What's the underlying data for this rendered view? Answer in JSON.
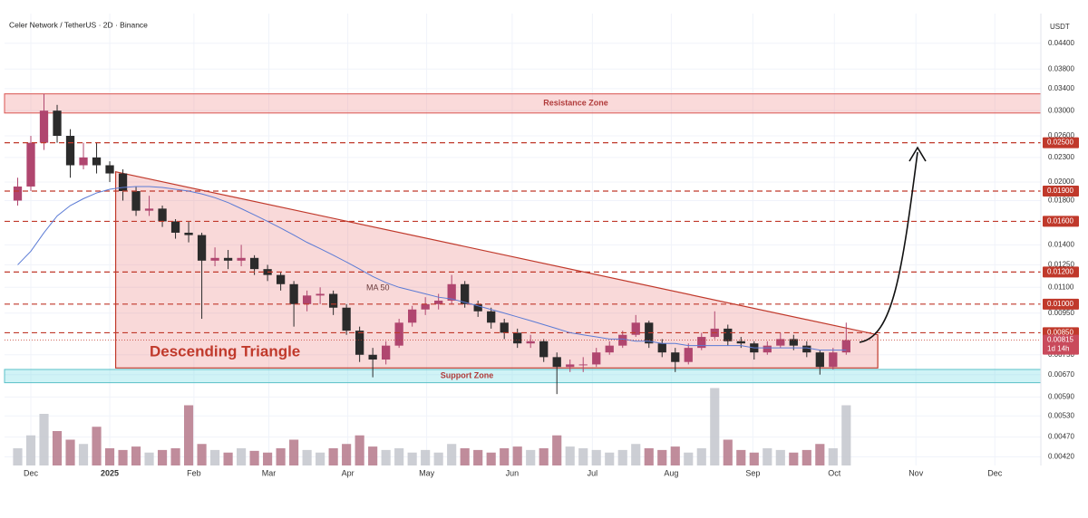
{
  "chart_data": {
    "type": "candlestick",
    "title": "Celer Network / TetherUS · 2D · Binance",
    "axis_unit": "USDT",
    "log_scale": true,
    "grid": true,
    "ylim": [
      0.004,
      0.051
    ],
    "yticks": [
      {
        "value": 0.044,
        "label": "0.04400"
      },
      {
        "value": 0.038,
        "label": "0.03800"
      },
      {
        "value": 0.034,
        "label": "0.03400"
      },
      {
        "value": 0.03,
        "label": "0.03000"
      },
      {
        "value": 0.026,
        "label": "0.02600"
      },
      {
        "value": 0.023,
        "label": "0.02300"
      },
      {
        "value": 0.02,
        "label": "0.02000"
      },
      {
        "value": 0.018,
        "label": "0.01800"
      },
      {
        "value": 0.014,
        "label": "0.01400"
      },
      {
        "value": 0.0125,
        "label": "0.01250"
      },
      {
        "value": 0.011,
        "label": "0.01100"
      },
      {
        "value": 0.0095,
        "label": "0.00950"
      },
      {
        "value": 0.0075,
        "label": "0.00750"
      },
      {
        "value": 0.0067,
        "label": "0.00670"
      },
      {
        "value": 0.0059,
        "label": "0.00590"
      },
      {
        "value": 0.0053,
        "label": "0.00530"
      },
      {
        "value": 0.0047,
        "label": "0.00470"
      },
      {
        "value": 0.0042,
        "label": "0.00420"
      }
    ],
    "xlim": [
      -1,
      77.8
    ],
    "xticks": [
      {
        "value": 1,
        "label": "Dec"
      },
      {
        "value": 7,
        "label": "2025"
      },
      {
        "value": 13.4,
        "label": "Feb"
      },
      {
        "value": 19.1,
        "label": "Mar"
      },
      {
        "value": 25.1,
        "label": "Apr"
      },
      {
        "value": 31.1,
        "label": "May"
      },
      {
        "value": 37.6,
        "label": "Jun"
      },
      {
        "value": 43.7,
        "label": "Jul"
      },
      {
        "value": 49.7,
        "label": "Aug"
      },
      {
        "value": 55.9,
        "label": "Sep"
      },
      {
        "value": 62.1,
        "label": "Oct"
      },
      {
        "value": 68.3,
        "label": "Nov"
      },
      {
        "value": 74.3,
        "label": "Dec"
      }
    ],
    "up_color": "#b0466f",
    "down_color": "#2b2b2b",
    "ohlc": [
      [
        0.018,
        0.0205,
        0.0175,
        0.0195
      ],
      [
        0.0195,
        0.026,
        0.019,
        0.025
      ],
      [
        0.025,
        0.033,
        0.024,
        0.03
      ],
      [
        0.03,
        0.031,
        0.025,
        0.026
      ],
      [
        0.026,
        0.027,
        0.0205,
        0.022
      ],
      [
        0.022,
        0.025,
        0.0215,
        0.023
      ],
      [
        0.023,
        0.025,
        0.021,
        0.022
      ],
      [
        0.022,
        0.0225,
        0.02,
        0.021
      ],
      [
        0.021,
        0.0215,
        0.018,
        0.019
      ],
      [
        0.019,
        0.0195,
        0.0165,
        0.017
      ],
      [
        0.017,
        0.0185,
        0.0165,
        0.0172
      ],
      [
        0.0172,
        0.0175,
        0.0155,
        0.016
      ],
      [
        0.016,
        0.0162,
        0.0145,
        0.015
      ],
      [
        0.015,
        0.016,
        0.0142,
        0.0148
      ],
      [
        0.0148,
        0.015,
        0.0092,
        0.0128
      ],
      [
        0.0128,
        0.0138,
        0.0124,
        0.013
      ],
      [
        0.013,
        0.0136,
        0.0122,
        0.0128
      ],
      [
        0.0128,
        0.014,
        0.0124,
        0.013
      ],
      [
        0.013,
        0.0132,
        0.0118,
        0.0122
      ],
      [
        0.0122,
        0.0125,
        0.0114,
        0.0118
      ],
      [
        0.0118,
        0.012,
        0.0108,
        0.0112
      ],
      [
        0.0112,
        0.0114,
        0.0088,
        0.01
      ],
      [
        0.01,
        0.0108,
        0.0096,
        0.0105
      ],
      [
        0.0105,
        0.011,
        0.01,
        0.0106
      ],
      [
        0.0106,
        0.0108,
        0.0094,
        0.0098
      ],
      [
        0.0098,
        0.01,
        0.0084,
        0.0086
      ],
      [
        0.0086,
        0.0088,
        0.0072,
        0.0075
      ],
      [
        0.0075,
        0.0078,
        0.0066,
        0.0073
      ],
      [
        0.0073,
        0.0081,
        0.0071,
        0.0079
      ],
      [
        0.0079,
        0.0092,
        0.0078,
        0.009
      ],
      [
        0.009,
        0.0099,
        0.0088,
        0.0097
      ],
      [
        0.0097,
        0.0104,
        0.0094,
        0.01
      ],
      [
        0.01,
        0.0106,
        0.0097,
        0.0102
      ],
      [
        0.0102,
        0.0118,
        0.01,
        0.0112
      ],
      [
        0.0112,
        0.0114,
        0.0098,
        0.01
      ],
      [
        0.01,
        0.0102,
        0.0093,
        0.0096
      ],
      [
        0.0096,
        0.0098,
        0.0087,
        0.009
      ],
      [
        0.009,
        0.0092,
        0.0082,
        0.0085
      ],
      [
        0.0085,
        0.0087,
        0.0078,
        0.008
      ],
      [
        0.008,
        0.0084,
        0.0078,
        0.0081
      ],
      [
        0.0081,
        0.0082,
        0.0072,
        0.0074
      ],
      [
        0.0074,
        0.0076,
        0.006,
        0.007
      ],
      [
        0.007,
        0.0073,
        0.0068,
        0.0071
      ],
      [
        0.0071,
        0.0074,
        0.0068,
        0.0071
      ],
      [
        0.0071,
        0.0078,
        0.007,
        0.0076
      ],
      [
        0.0076,
        0.0081,
        0.0075,
        0.0079
      ],
      [
        0.0079,
        0.0086,
        0.0078,
        0.0084
      ],
      [
        0.0084,
        0.0094,
        0.0083,
        0.009
      ],
      [
        0.009,
        0.0091,
        0.0078,
        0.008
      ],
      [
        0.008,
        0.0082,
        0.0074,
        0.0076
      ],
      [
        0.0076,
        0.0078,
        0.0068,
        0.0072
      ],
      [
        0.0072,
        0.008,
        0.0071,
        0.0078
      ],
      [
        0.0078,
        0.0085,
        0.0077,
        0.0083
      ],
      [
        0.0083,
        0.0096,
        0.0082,
        0.0087
      ],
      [
        0.0087,
        0.0089,
        0.0079,
        0.0081
      ],
      [
        0.0081,
        0.0083,
        0.0078,
        0.008
      ],
      [
        0.008,
        0.0081,
        0.0073,
        0.0076
      ],
      [
        0.0076,
        0.0081,
        0.0075,
        0.0079
      ],
      [
        0.0079,
        0.0085,
        0.0078,
        0.0082
      ],
      [
        0.0082,
        0.0084,
        0.0077,
        0.0079
      ],
      [
        0.0079,
        0.0081,
        0.0074,
        0.0076
      ],
      [
        0.0076,
        0.0077,
        0.0067,
        0.007
      ],
      [
        0.007,
        0.0078,
        0.0069,
        0.0076
      ],
      [
        0.0076,
        0.009,
        0.0075,
        0.00815
      ]
    ],
    "ma": {
      "name": "MA 50",
      "color": "#5b7bd5",
      "values": [
        0.0125,
        0.0135,
        0.015,
        0.0165,
        0.0175,
        0.0182,
        0.0188,
        0.0192,
        0.0194,
        0.0195,
        0.0195,
        0.0194,
        0.0192,
        0.019,
        0.0187,
        0.0183,
        0.0178,
        0.0172,
        0.0166,
        0.016,
        0.0154,
        0.0148,
        0.0142,
        0.0137,
        0.0132,
        0.0127,
        0.0122,
        0.0117,
        0.0113,
        0.011,
        0.0108,
        0.0106,
        0.0104,
        0.0103,
        0.0101,
        0.0099,
        0.0097,
        0.0095,
        0.0093,
        0.0091,
        0.0089,
        0.0087,
        0.0085,
        0.0084,
        0.0083,
        0.0082,
        0.0082,
        0.0081,
        0.0081,
        0.008,
        0.008,
        0.0079,
        0.0079,
        0.0079,
        0.0079,
        0.0079,
        0.0078,
        0.0078,
        0.0078,
        0.0078,
        0.0078,
        0.0077,
        0.0077,
        0.0077
      ]
    },
    "volume": {
      "vlim": [
        0,
        100
      ],
      "up_color": "#c3c5cc",
      "down_color": "#b5788a",
      "values": [
        20,
        35,
        60,
        40,
        30,
        25,
        45,
        20,
        18,
        22,
        15,
        18,
        20,
        70,
        25,
        18,
        15,
        20,
        17,
        15,
        20,
        30,
        18,
        15,
        20,
        25,
        35,
        22,
        18,
        20,
        15,
        18,
        15,
        25,
        20,
        18,
        15,
        20,
        22,
        18,
        20,
        35,
        22,
        20,
        18,
        15,
        18,
        25,
        20,
        18,
        22,
        15,
        20,
        90,
        30,
        18,
        15,
        20,
        18,
        15,
        18,
        25,
        20,
        70
      ]
    },
    "resistance_zone": {
      "label": "Resistance Zone",
      "range": [
        0.0296,
        0.033
      ]
    },
    "support_zone": {
      "label": "Support Zone",
      "range": [
        0.0064,
        0.0069
      ]
    },
    "triangle": {
      "label": "Descending Triangle",
      "points": [
        [
          7.45,
          0.0212
        ],
        [
          65.4,
          0.0084
        ],
        [
          65.4,
          0.00696
        ],
        [
          7.45,
          0.00696
        ]
      ]
    },
    "levels": [
      {
        "value": 0.025,
        "label": "0.02500"
      },
      {
        "value": 0.019,
        "label": "0.01900"
      },
      {
        "value": 0.016,
        "label": "0.01600"
      },
      {
        "value": 0.012,
        "label": "0.01200"
      },
      {
        "value": 0.01,
        "label": "0.01000"
      },
      {
        "value": 0.0085,
        "label": "0.00850"
      }
    ],
    "level_color": "#c0392b",
    "last_price": {
      "value": 0.00815,
      "label": "0.00815",
      "countdown": "1d 14h"
    }
  }
}
